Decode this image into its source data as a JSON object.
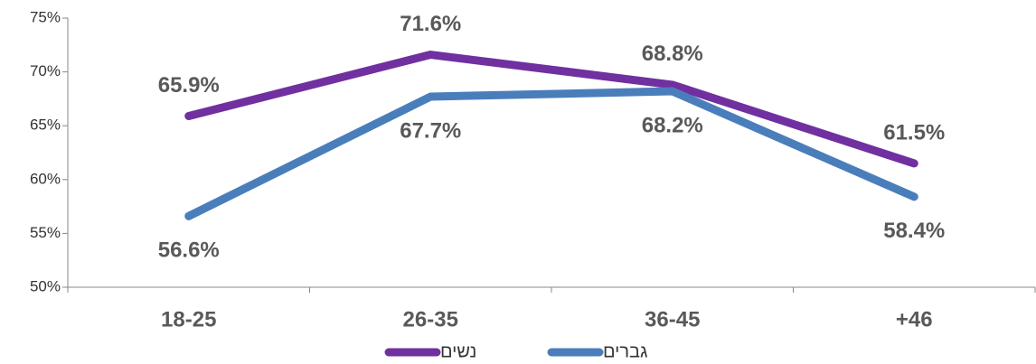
{
  "chart_data": {
    "type": "line",
    "categories": [
      "18-25",
      "26-35",
      "36-45",
      "+46"
    ],
    "series": [
      {
        "name": "נשים",
        "color": "#7030a0",
        "values": [
          65.9,
          71.6,
          68.8,
          61.5
        ],
        "value_labels": [
          "65.9%",
          "71.6%",
          "68.8%",
          "61.5%"
        ]
      },
      {
        "name": "גברים",
        "color": "#4a7ebb",
        "values": [
          56.6,
          67.7,
          68.2,
          58.4
        ],
        "value_labels": [
          "56.6%",
          "67.7%",
          "68.2%",
          "58.4%"
        ]
      }
    ],
    "ylim": [
      50,
      75
    ],
    "yticks": [
      {
        "value": 50,
        "label": "50%"
      },
      {
        "value": 55,
        "label": "55%"
      },
      {
        "value": 60,
        "label": "60%"
      },
      {
        "value": 65,
        "label": "65%"
      },
      {
        "value": 70,
        "label": "70%"
      },
      {
        "value": 75,
        "label": "75%"
      }
    ],
    "grid": false,
    "legend": "bottom"
  }
}
